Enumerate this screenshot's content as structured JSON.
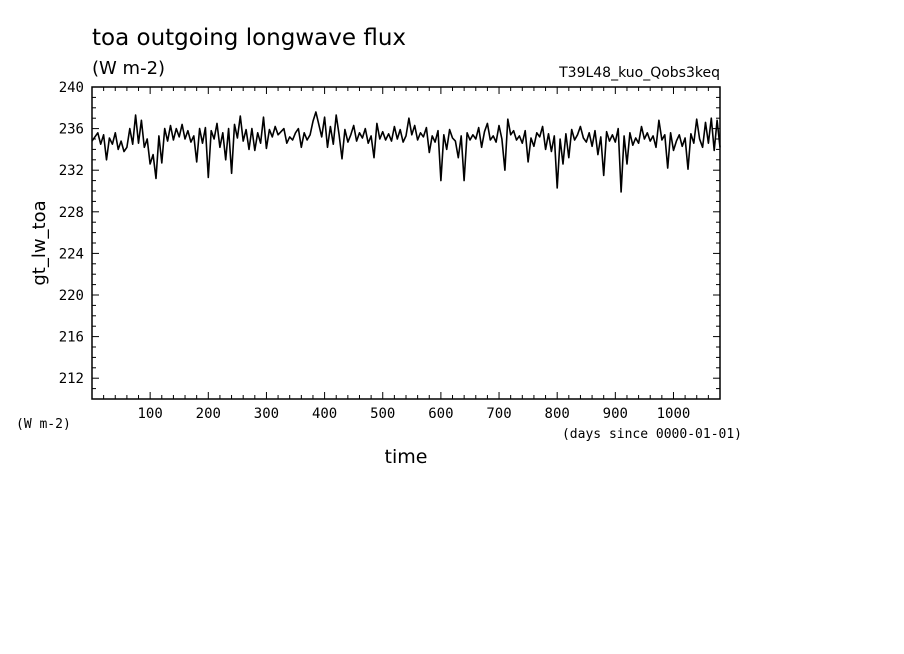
{
  "chart_data": {
    "type": "line",
    "title": "toa outgoing longwave flux",
    "subtitle": "(W m-2)",
    "experiment_label": "T39L48_kuo_Qobs3keq",
    "xlabel": "time",
    "x_units": "(days since 0000-01-01)",
    "ylabel": "gt_lw_toa",
    "y_units": "(W m-2)",
    "xlim": [
      0,
      1080
    ],
    "ylim": [
      210,
      240
    ],
    "x_ticks": [
      100,
      200,
      300,
      400,
      500,
      600,
      700,
      800,
      900,
      1000
    ],
    "y_ticks": [
      212,
      216,
      220,
      224,
      228,
      232,
      236,
      240
    ],
    "grid": false,
    "line_color": "#000000",
    "series": [
      {
        "name": "",
        "x": [
          0,
          5,
          10,
          15,
          20,
          25,
          30,
          35,
          40,
          45,
          50,
          55,
          60,
          65,
          70,
          75,
          80,
          85,
          90,
          95,
          100,
          105,
          110,
          115,
          120,
          125,
          130,
          135,
          140,
          145,
          150,
          155,
          160,
          165,
          170,
          175,
          180,
          185,
          190,
          195,
          200,
          205,
          210,
          215,
          220,
          225,
          230,
          235,
          240,
          245,
          250,
          255,
          260,
          265,
          270,
          275,
          280,
          285,
          290,
          295,
          300,
          305,
          310,
          315,
          320,
          325,
          330,
          335,
          340,
          345,
          350,
          355,
          360,
          365,
          370,
          375,
          380,
          385,
          390,
          395,
          400,
          405,
          410,
          415,
          420,
          425,
          430,
          435,
          440,
          445,
          450,
          455,
          460,
          465,
          470,
          475,
          480,
          485,
          490,
          495,
          500,
          505,
          510,
          515,
          520,
          525,
          530,
          535,
          540,
          545,
          550,
          555,
          560,
          565,
          570,
          575,
          580,
          585,
          590,
          595,
          600,
          605,
          610,
          615,
          620,
          625,
          630,
          635,
          640,
          645,
          650,
          655,
          660,
          665,
          670,
          675,
          680,
          685,
          690,
          695,
          700,
          705,
          710,
          715,
          720,
          725,
          730,
          735,
          740,
          745,
          750,
          755,
          760,
          765,
          770,
          775,
          780,
          785,
          790,
          795,
          800,
          805,
          810,
          815,
          820,
          825,
          830,
          835,
          840,
          845,
          850,
          855,
          860,
          865,
          870,
          875,
          880,
          885,
          890,
          895,
          900,
          905,
          910,
          915,
          920,
          925,
          930,
          935,
          940,
          945,
          950,
          955,
          960,
          965,
          970,
          975,
          980,
          985,
          990,
          995,
          1000,
          1005,
          1010,
          1015,
          1020,
          1025,
          1030,
          1035,
          1040,
          1045,
          1050,
          1055,
          1060,
          1065,
          1070,
          1075,
          1080
        ],
        "y": [
          234.8,
          235.2,
          235.6,
          234.5,
          235.4,
          233.0,
          235.1,
          234.5,
          235.6,
          234.0,
          234.8,
          233.8,
          234.2,
          236.0,
          234.5,
          237.3,
          234.6,
          236.8,
          234.2,
          235.0,
          232.6,
          233.5,
          231.2,
          235.3,
          232.7,
          236.0,
          234.8,
          236.3,
          234.9,
          236.0,
          235.2,
          236.4,
          235.0,
          235.8,
          234.7,
          235.3,
          232.8,
          236.0,
          234.6,
          236.1,
          231.3,
          235.8,
          235.0,
          236.5,
          234.2,
          235.6,
          233.0,
          236.0,
          231.7,
          236.4,
          235.1,
          237.2,
          234.8,
          235.9,
          234.0,
          236.0,
          233.9,
          235.6,
          234.6,
          237.1,
          234.1,
          235.9,
          235.2,
          236.2,
          235.4,
          235.7,
          236.0,
          234.6,
          235.2,
          234.9,
          235.6,
          236.0,
          234.2,
          235.6,
          234.9,
          235.4,
          236.7,
          237.6,
          236.4,
          235.2,
          237.1,
          234.2,
          236.2,
          234.5,
          237.3,
          235.4,
          233.1,
          235.9,
          234.7,
          235.4,
          236.3,
          234.8,
          235.6,
          235.1,
          236.0,
          234.6,
          235.3,
          233.2,
          236.5,
          235.0,
          235.7,
          234.9,
          235.5,
          234.8,
          236.2,
          235.0,
          235.9,
          234.7,
          235.3,
          237.0,
          235.4,
          236.3,
          234.9,
          235.6,
          235.2,
          236.1,
          233.7,
          235.3,
          234.7,
          235.8,
          231.0,
          235.4,
          234.0,
          235.9,
          235.1,
          234.8,
          233.2,
          235.3,
          231.0,
          235.6,
          234.9,
          235.4,
          235.0,
          236.1,
          234.2,
          235.7,
          236.5,
          234.9,
          235.3,
          234.7,
          236.3,
          235.0,
          232.0,
          236.9,
          235.4,
          235.8,
          234.9,
          235.3,
          234.6,
          235.8,
          232.8,
          235.1,
          234.3,
          235.6,
          235.2,
          236.2,
          234.0,
          235.5,
          233.8,
          235.3,
          230.3,
          235.0,
          232.6,
          235.5,
          233.2,
          235.9,
          234.9,
          235.4,
          236.2,
          235.1,
          234.7,
          235.6,
          234.3,
          235.8,
          233.5,
          235.2,
          231.5,
          235.7,
          234.8,
          235.4,
          234.7,
          236.0,
          229.9,
          235.3,
          232.6,
          235.6,
          234.4,
          235.1,
          234.6,
          236.2,
          235.0,
          235.6,
          234.8,
          235.3,
          234.2,
          236.8,
          234.9,
          235.4,
          232.2,
          235.6,
          233.9,
          234.8,
          235.4,
          234.3,
          235.1,
          232.1,
          235.5,
          234.6,
          236.9,
          235.0,
          234.2,
          236.6,
          234.6,
          237.0,
          233.9,
          236.8,
          234.2
        ]
      }
    ]
  }
}
